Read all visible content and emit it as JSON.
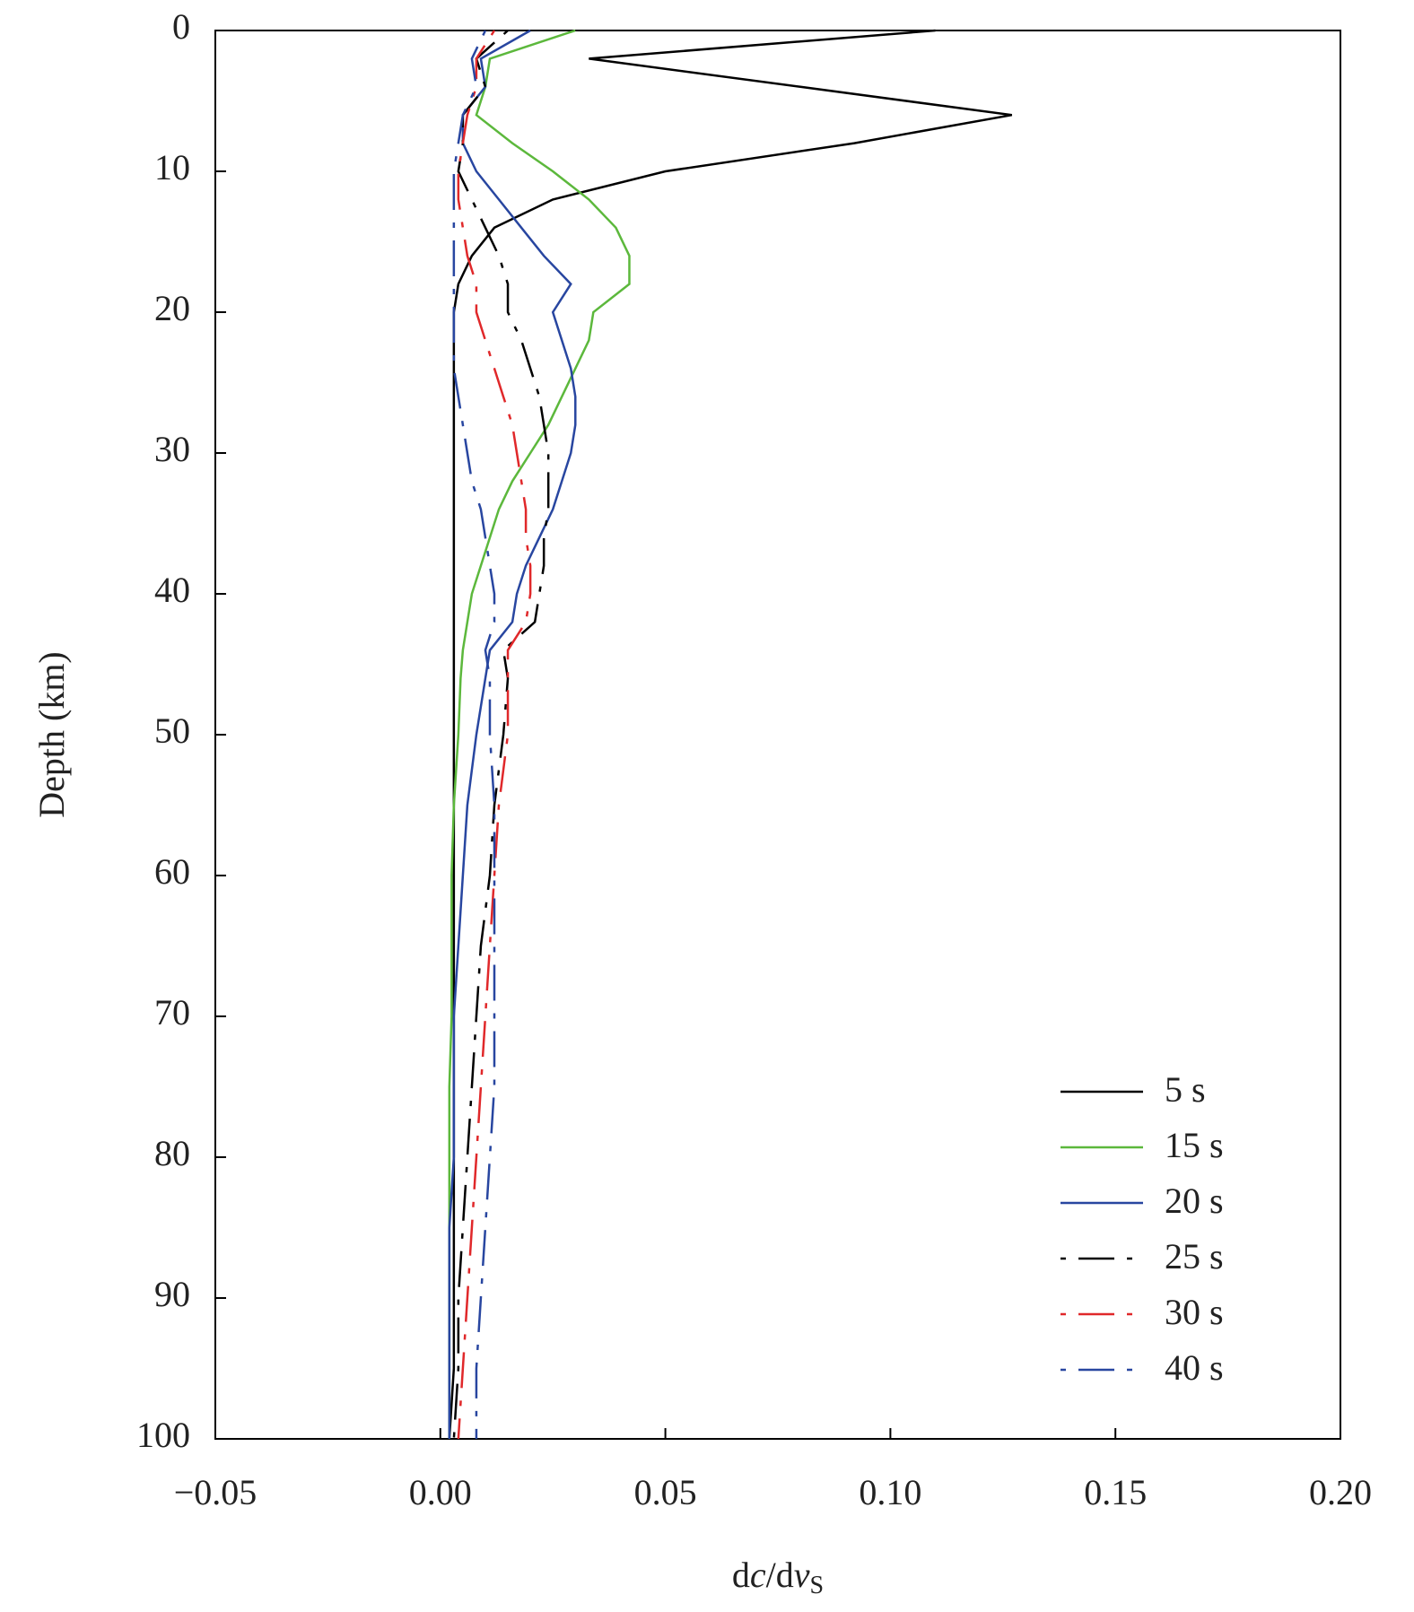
{
  "chart_data": {
    "type": "line",
    "ylabel": "Depth (km)",
    "xlabel_parts": [
      "d",
      "c",
      "/d",
      "v",
      "S"
    ],
    "xlim": [
      -0.05,
      0.2
    ],
    "xticks": [
      {
        "value": -0.05,
        "label": "−0.05"
      },
      {
        "value": 0,
        "label": "0.00"
      },
      0.05,
      {
        "value": 0.1,
        "label": "0.10"
      },
      0.15,
      {
        "value": 0.2,
        "label": "0.20"
      }
    ],
    "ylim": [
      0,
      100
    ],
    "y_inverted": true,
    "yticks": [
      0,
      10,
      20,
      30,
      40,
      50,
      60,
      70,
      80,
      90,
      100
    ],
    "legend": "lower right",
    "y": [
      0,
      2,
      4,
      6,
      8,
      10,
      12,
      14,
      16,
      18,
      20,
      22,
      24,
      26,
      28,
      30,
      32,
      34,
      36,
      38,
      40,
      42,
      44,
      46,
      50,
      55,
      60,
      65,
      70,
      75,
      80,
      85,
      90,
      95,
      100
    ],
    "series": [
      {
        "name": "5 s",
        "color": "#000000",
        "style": "solid",
        "values": [
          0.11,
          0.033,
          0.08,
          0.127,
          0.092,
          0.05,
          0.025,
          0.012,
          0.007,
          0.004,
          0.003,
          0.003,
          0.003,
          0.003,
          0.003,
          0.003,
          0.003,
          0.003,
          0.003,
          0.003,
          0.003,
          0.003,
          0.003,
          0.003,
          0.003,
          0.003,
          0.003,
          0.003,
          0.003,
          0.003,
          0.003,
          0.003,
          0.003,
          0.003,
          0.002
        ]
      },
      {
        "name": "15 s",
        "color": "#5cb83c",
        "style": "solid",
        "values": [
          0.03,
          0.011,
          0.01,
          0.008,
          0.016,
          0.025,
          0.033,
          0.039,
          0.042,
          0.042,
          0.034,
          0.033,
          0.03,
          0.027,
          0.024,
          0.02,
          0.016,
          0.013,
          0.011,
          0.009,
          0.007,
          0.006,
          0.005,
          0.0045,
          0.004,
          0.003,
          0.0025,
          0.0025,
          0.0025,
          0.002,
          0.002,
          0.002,
          0.002,
          0.002,
          0.002
        ]
      },
      {
        "name": "20 s",
        "color": "#2846a0",
        "style": "solid",
        "values": [
          0.02,
          0.009,
          0.01,
          0.005,
          0.005,
          0.008,
          0.013,
          0.018,
          0.023,
          0.029,
          0.025,
          0.027,
          0.029,
          0.03,
          0.03,
          0.029,
          0.027,
          0.025,
          0.022,
          0.019,
          0.017,
          0.016,
          0.011,
          0.01,
          0.008,
          0.006,
          0.005,
          0.004,
          0.003,
          0.003,
          0.003,
          0.002,
          0.002,
          0.002,
          0.002
        ]
      },
      {
        "name": "25 s",
        "color": "#000000",
        "style": "dashdot",
        "values": [
          0.015,
          0.008,
          0.01,
          0.005,
          0.005,
          0.004,
          0.007,
          0.01,
          0.013,
          0.015,
          0.015,
          0.018,
          0.02,
          0.022,
          0.023,
          0.024,
          0.024,
          0.024,
          0.023,
          0.023,
          0.022,
          0.021,
          0.014,
          0.015,
          0.014,
          0.012,
          0.011,
          0.009,
          0.008,
          0.007,
          0.006,
          0.005,
          0.004,
          0.004,
          0.003
        ]
      },
      {
        "name": "30 s",
        "color": "#e0282a",
        "style": "dashdot",
        "values": [
          0.012,
          0.008,
          0.008,
          0.006,
          0.005,
          0.004,
          0.004,
          0.005,
          0.006,
          0.008,
          0.008,
          0.01,
          0.012,
          0.014,
          0.016,
          0.017,
          0.018,
          0.019,
          0.019,
          0.02,
          0.02,
          0.019,
          0.015,
          0.015,
          0.015,
          0.013,
          0.012,
          0.011,
          0.01,
          0.009,
          0.008,
          0.007,
          0.006,
          0.005,
          0.004
        ]
      },
      {
        "name": "40 s",
        "color": "#2846a0",
        "style": "dashdot",
        "values": [
          0.01,
          0.007,
          0.008,
          0.005,
          0.004,
          0.003,
          0.003,
          0.003,
          0.003,
          0.003,
          0.003,
          0.003,
          0.003,
          0.004,
          0.005,
          0.006,
          0.007,
          0.009,
          0.01,
          0.011,
          0.012,
          0.012,
          0.01,
          0.011,
          0.011,
          0.012,
          0.012,
          0.012,
          0.012,
          0.012,
          0.011,
          0.01,
          0.009,
          0.008,
          0.008
        ]
      }
    ]
  }
}
